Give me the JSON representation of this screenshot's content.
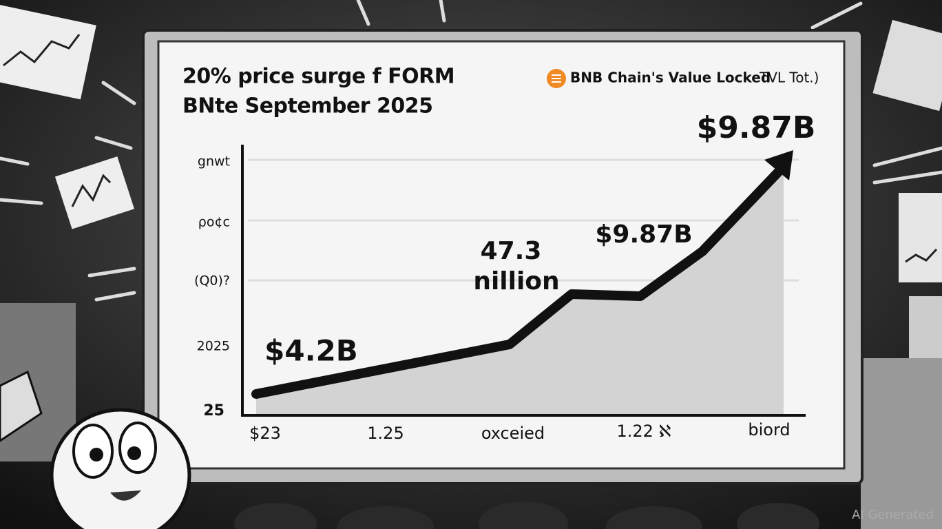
{
  "header": {
    "title_lines": [
      "20% price surge f FORM",
      "BNte September 2025"
    ]
  },
  "legend": {
    "label": "BNB Chain's Value Locked",
    "extra": "TVL  Tot.)"
  },
  "y_labels": [
    "gnwt",
    "ρo¢c",
    "(Q0)?",
    "2025",
    "25"
  ],
  "x_labels": [
    "$23",
    "1.25",
    "oxceied",
    "1.22 ℵ",
    "biord"
  ],
  "annotations": [
    "$9.87B",
    "$9.87B",
    "47.3",
    "nillion",
    "$4.2B"
  ],
  "watermark": "AI Generated"
}
